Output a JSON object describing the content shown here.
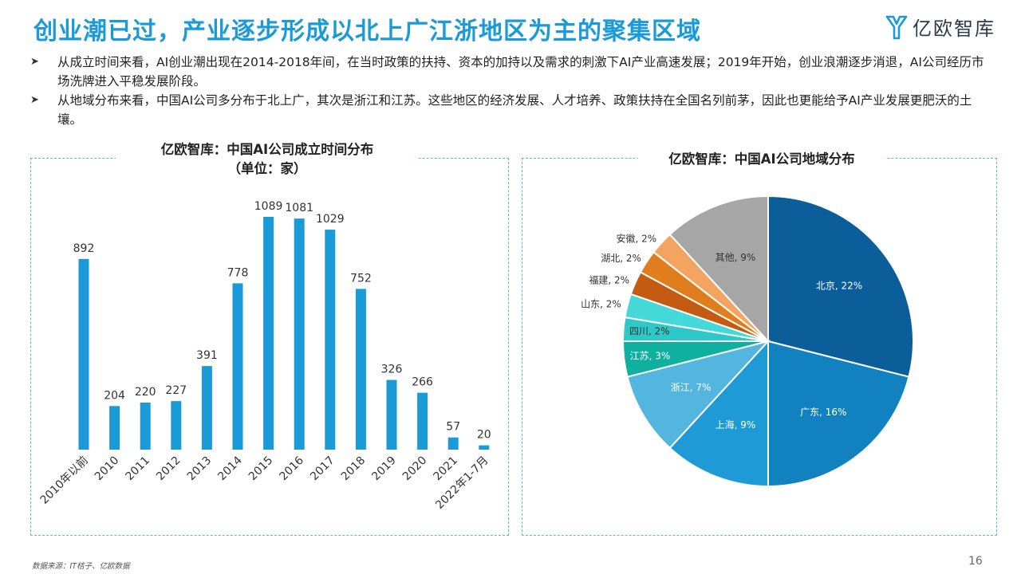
{
  "header": {
    "title": "创业潮已过，产业逐步形成以北上广江浙地区为主的聚集区域",
    "logo_text": "亿欧智库"
  },
  "bullets": [
    "从成立时间来看，AI创业潮出现在2014-2018年间，在当时政策的扶持、资本的加持以及需求的刺激下AI产业高速发展；2019年开始，创业浪潮逐步消退，AI公司经历市场洗牌进入平稳发展阶段。",
    "从地域分布来看，中国AI公司多分布于北上广，其次是浙江和江苏。这些地区的经济发展、人才培养、政策扶持在全国名列前茅，因此也更能给予AI产业发展更肥沃的土壤。"
  ],
  "bar_chart_title_line1": "亿欧智库：中国AI公司成立时间分布",
  "bar_chart_title_line2": "（单位：家）",
  "pie_chart_title": "亿欧智库：中国AI公司地域分布",
  "footer": {
    "source": "数据来源：IT桔子、亿欧数据",
    "page": "16"
  },
  "colors": {
    "accent": "#1a9ad6",
    "bar": "#1a9ad6"
  },
  "chart_data": [
    {
      "type": "bar",
      "title": "亿欧智库：中国AI公司成立时间分布",
      "subtitle": "（单位：家）",
      "categories": [
        "2010年以前",
        "2010",
        "2011",
        "2012",
        "2013",
        "2014",
        "2015",
        "2016",
        "2017",
        "2018",
        "2019",
        "2020",
        "2021",
        "2022年1-7月"
      ],
      "values": [
        892,
        204,
        220,
        227,
        391,
        778,
        1089,
        1081,
        1029,
        752,
        326,
        266,
        57,
        20
      ],
      "ylim": [
        0,
        1200
      ],
      "grid": false,
      "data_labels": true,
      "color": "#1a9ad6"
    },
    {
      "type": "pie",
      "title": "亿欧智库：中国AI公司地域分布",
      "labels": [
        "北京",
        "广东",
        "上海",
        "浙江",
        "江苏",
        "四川",
        "山东",
        "福建",
        "湖北",
        "安徽",
        "其他"
      ],
      "values": [
        22,
        16,
        9,
        7,
        3,
        2,
        2,
        2,
        2,
        2,
        9
      ],
      "display_labels": [
        "北京, 22%",
        "广东, 16%",
        "上海, 9%",
        "浙江, 7%",
        "江苏, 3%",
        "四川, 2%",
        "山东, 2%",
        "福建, 2%",
        "湖北, 2%",
        "安徽, 2%",
        "其他, 9%"
      ],
      "colors": [
        "#0b5e9a",
        "#1182bf",
        "#1e9ad6",
        "#52b6de",
        "#0fb0a0",
        "#2ec8c8",
        "#44d8d8",
        "#c55a11",
        "#e07d1c",
        "#f4a460",
        "#a6a6a6"
      ]
    }
  ]
}
